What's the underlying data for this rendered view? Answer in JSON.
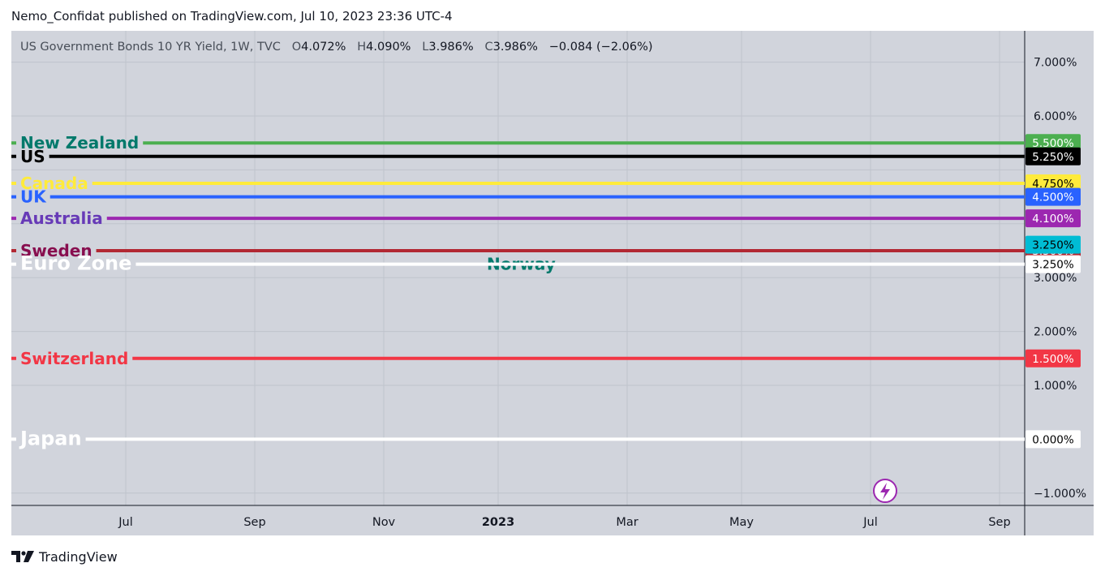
{
  "header": {
    "published": "Nemo_Confidat published on TradingView.com, Jul 10, 2023 23:36 UTC-4"
  },
  "legend": {
    "symbol": "US Government Bonds 10 YR Yield, 1W, TVC",
    "o_label": "O",
    "o_value": "4.072%",
    "h_label": "H",
    "h_value": "4.090%",
    "l_label": "L",
    "l_value": "3.986%",
    "c_label": "C",
    "c_value": "3.986%",
    "change": "−0.084 (−2.06%)"
  },
  "footer": {
    "brand": "TradingView"
  },
  "chart_data": {
    "type": "line",
    "ylim": [
      -1.2,
      7.5
    ],
    "y_tick_values": [
      -1,
      1,
      2,
      3,
      6,
      7
    ],
    "y_tick_labels": [
      "−1.000%",
      "1.000%",
      "2.000%",
      "3.000%",
      "6.000%",
      "7.000%"
    ],
    "x_tick_labels": [
      "Jul",
      "Sep",
      "Nov",
      "2023",
      "Mar",
      "May",
      "Jul",
      "Sep"
    ],
    "x_tick_bold": [
      false,
      false,
      false,
      true,
      false,
      false,
      false,
      false
    ],
    "grid": true,
    "colors": {
      "background": "#d1d4dc",
      "grid": "#bfc3cc",
      "axis": "#131722"
    },
    "series": [
      {
        "name": "New Zealand",
        "value": 5.5,
        "value_label": "5.500%",
        "color": "#4caf50",
        "text_color": "#00796b",
        "badge_text": "#ffffff"
      },
      {
        "name": "US",
        "value": 5.25,
        "value_label": "5.250%",
        "color": "#000000",
        "text_color": "#000000",
        "badge_text": "#ffffff"
      },
      {
        "name": "Canada",
        "value": 4.75,
        "value_label": "4.750%",
        "color": "#ffeb3b",
        "text_color": "#ffeb3b",
        "badge_text": "#000000"
      },
      {
        "name": "UK",
        "value": 4.5,
        "value_label": "4.500%",
        "color": "#2962ff",
        "text_color": "#2962ff",
        "badge_text": "#ffffff"
      },
      {
        "name": "Australia",
        "value": 4.1,
        "value_label": "4.100%",
        "color": "#9c27b0",
        "text_color": "#673ab7",
        "badge_text": "#ffffff"
      },
      {
        "name": "Sweden",
        "value": 3.5,
        "value_label": "3.500%",
        "color": "#b22833",
        "text_color": "#880e4f",
        "badge_text": "#ffffff"
      },
      {
        "name": "Norway",
        "value": 3.25,
        "value_label": "3.250%",
        "color": "#00bcd4",
        "text_color": "#00796b",
        "badge_text": "#000000"
      },
      {
        "name": "Euro Zone",
        "value": 3.25,
        "value_label": "3.250%",
        "color": "#ffffff",
        "text_color": "#ffffff",
        "badge_text": "#000000"
      },
      {
        "name": "Switzerland",
        "value": 1.5,
        "value_label": "1.500%",
        "color": "#f23645",
        "text_color": "#f23645",
        "badge_text": "#ffffff"
      },
      {
        "name": "Japan",
        "value": 0.0,
        "value_label": "0.000%",
        "color": "#ffffff",
        "text_color": "#ffffff",
        "badge_text": "#000000"
      }
    ]
  }
}
